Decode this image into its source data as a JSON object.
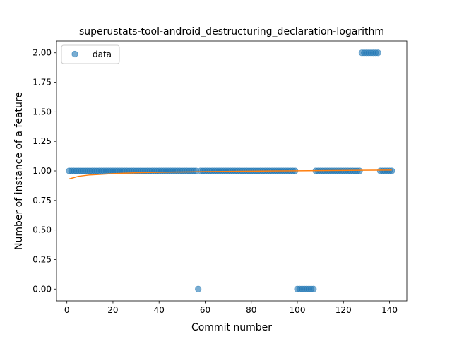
{
  "chart_data": {
    "type": "scatter",
    "title": "superustats-tool-android_destructuring_declaration-logarithm",
    "xlabel": "Commit number",
    "ylabel": "Number of instance of a feature",
    "xlim": [
      -4.5,
      147.5
    ],
    "ylim": [
      -0.1,
      2.1
    ],
    "x_ticks": [
      0,
      20,
      40,
      60,
      80,
      100,
      120,
      140
    ],
    "x_tick_labels": [
      "0",
      "20",
      "40",
      "60",
      "80",
      "100",
      "120",
      "140"
    ],
    "y_ticks": [
      0.0,
      0.25,
      0.5,
      0.75,
      1.0,
      1.25,
      1.5,
      1.75,
      2.0
    ],
    "y_tick_labels": [
      "0.00",
      "0.25",
      "0.50",
      "0.75",
      "1.00",
      "1.25",
      "1.50",
      "1.75",
      "2.00"
    ],
    "grid": false,
    "legend_placement": "upper-left",
    "colors": {
      "data": "#1f77b4",
      "fit": "#ff7f0e"
    },
    "series": [
      {
        "name": "data",
        "kind": "scatter",
        "segments": [
          {
            "x_from": 1,
            "x_to": 56,
            "y": 1
          },
          {
            "x_from": 57,
            "x_to": 57,
            "y": 0
          },
          {
            "x_from": 58,
            "x_to": 99,
            "y": 1
          },
          {
            "x_from": 100,
            "x_to": 107,
            "y": 0
          },
          {
            "x_from": 108,
            "x_to": 127,
            "y": 1
          },
          {
            "x_from": 128,
            "x_to": 135,
            "y": 2
          },
          {
            "x_from": 136,
            "x_to": 141,
            "y": 1
          }
        ]
      },
      {
        "kind": "line",
        "model": "logarithm",
        "x": [
          1,
          5,
          10,
          20,
          30,
          40,
          60,
          80,
          100,
          120,
          141
        ],
        "y": [
          0.932,
          0.954,
          0.966,
          0.977,
          0.984,
          0.988,
          0.994,
          0.998,
          1.001,
          1.004,
          1.007
        ]
      }
    ]
  }
}
